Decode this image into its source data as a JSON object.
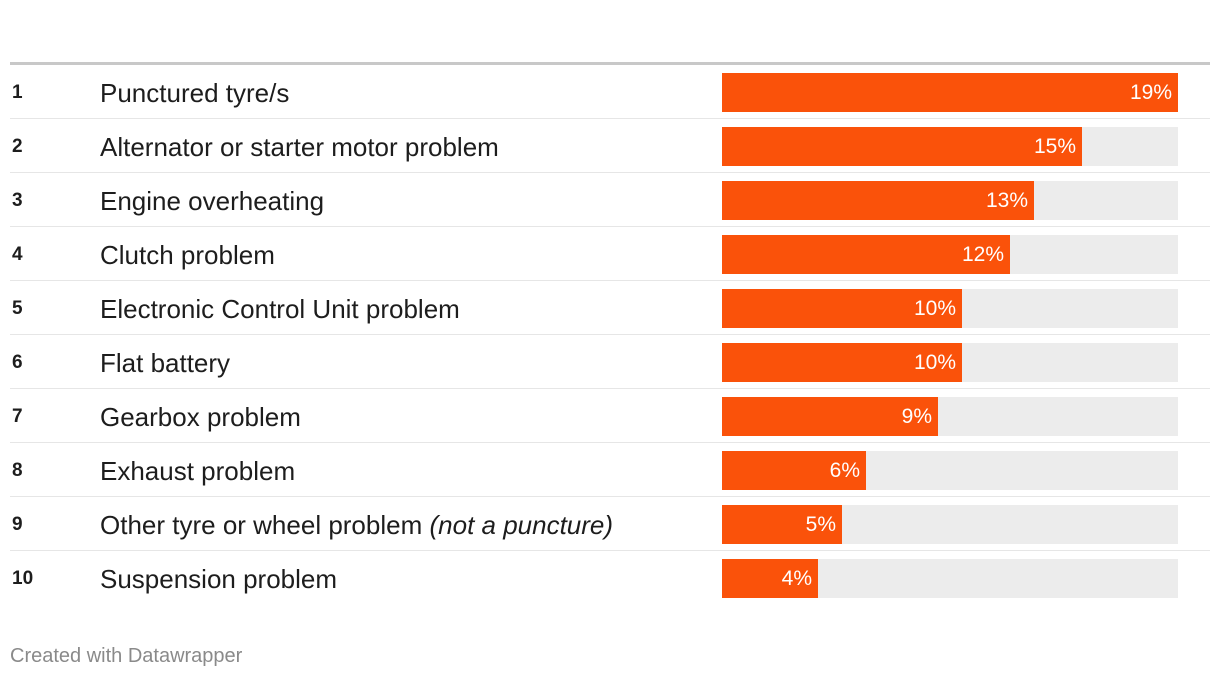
{
  "chart_data": {
    "type": "bar",
    "orientation": "horizontal",
    "ranks": [
      "1",
      "2",
      "3",
      "4",
      "5",
      "6",
      "7",
      "8",
      "9",
      "10"
    ],
    "categories": [
      "Punctured tyre/s",
      "Alternator or starter motor problem",
      "Engine overheating",
      "Clutch problem",
      "Electronic Control Unit problem",
      "Flat battery",
      "Gearbox problem",
      "Exhaust problem",
      "Other tyre or wheel problem",
      "Suspension problem"
    ],
    "category_notes": [
      "",
      "",
      "",
      "",
      "",
      "",
      "",
      "",
      "(not a puncture)",
      ""
    ],
    "values": [
      19,
      15,
      13,
      12,
      10,
      10,
      9,
      6,
      5,
      4
    ],
    "value_labels": [
      "19%",
      "15%",
      "13%",
      "12%",
      "10%",
      "10%",
      "9%",
      "6%",
      "5%",
      "4%"
    ],
    "xlim": [
      0,
      19
    ],
    "bar_color": "#fa520a",
    "track_color": "#ececec"
  },
  "footer": {
    "credit": "Created with Datawrapper"
  }
}
